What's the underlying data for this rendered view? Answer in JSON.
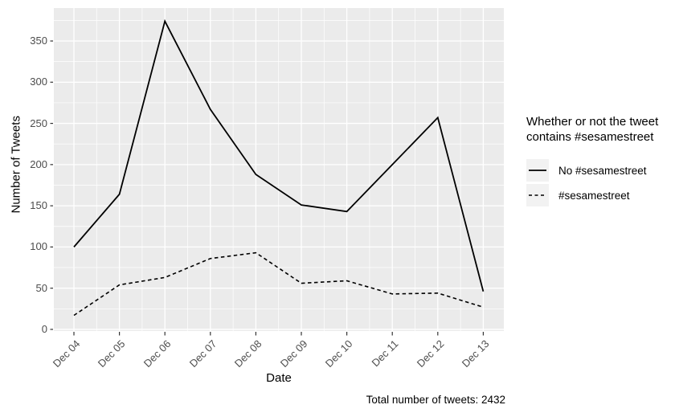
{
  "chart_data": {
    "type": "line",
    "x_categories": [
      "Dec 04",
      "Dec 05",
      "Dec 06",
      "Dec 07",
      "Dec 08",
      "Dec 09",
      "Dec 10",
      "Dec 11",
      "Dec 12",
      "Dec 13"
    ],
    "series": [
      {
        "name": "No #sesamestreet",
        "line_style": "solid",
        "values": [
          100,
          164,
          374,
          267,
          188,
          151,
          143,
          200,
          257,
          46
        ]
      },
      {
        "name": "#sesamestreet",
        "line_style": "dashed",
        "values": [
          17,
          54,
          63,
          86,
          93,
          56,
          59,
          43,
          44,
          27
        ]
      }
    ],
    "xlabel": "Date",
    "ylabel": "Number of Tweets",
    "y_ticks": [
      0,
      50,
      100,
      150,
      200,
      250,
      300,
      350
    ],
    "ylim": [
      -2,
      390
    ],
    "grid": true,
    "legend": {
      "position": "right",
      "title": "Whether or not the tweet contains #sesamestreet"
    },
    "caption": "Total number of tweets: 2432",
    "colors": {
      "panel_bg": "#ebebeb",
      "grid": "#ffffff",
      "line": "#000000",
      "tick_mark": "#333333",
      "tick_label": "#4d4d4d",
      "legend_key_bg": "#f2f2f2"
    }
  }
}
